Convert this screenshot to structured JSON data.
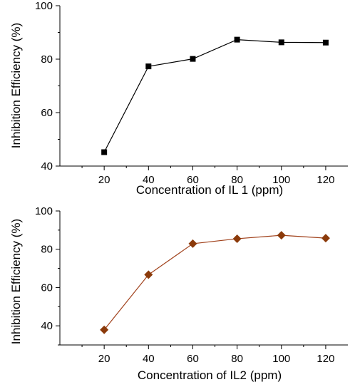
{
  "chart_data": [
    {
      "type": "line",
      "title": "",
      "xlabel": "Concentration of IL 1 (ppm)",
      "ylabel": "Inhibition Efficiency (%)",
      "xlim": [
        0,
        130
      ],
      "ylim": [
        40,
        100
      ],
      "x_ticks": [
        "20",
        "40",
        "60",
        "80",
        "100",
        "120"
      ],
      "y_ticks": [
        "40",
        "60",
        "80",
        "100"
      ],
      "marker": "square",
      "series": [
        {
          "x": [
            20,
            40,
            60,
            80,
            100,
            120
          ],
          "y": [
            45.2,
            77.3,
            80.1,
            87.3,
            86.3,
            86.2
          ],
          "color": "#000000",
          "line_color": "#000000"
        }
      ]
    },
    {
      "type": "line",
      "title": "",
      "xlabel": "Concentration of IL2 (ppm)",
      "ylabel": "Inhibition Efficiency (%)",
      "xlim": [
        0,
        130
      ],
      "ylim": [
        30,
        100
      ],
      "x_ticks": [
        "20",
        "40",
        "60",
        "80",
        "100",
        "120"
      ],
      "y_ticks": [
        "40",
        "60",
        "80",
        "100"
      ],
      "marker": "diamond",
      "series": [
        {
          "x": [
            20,
            40,
            60,
            80,
            100,
            120
          ],
          "y": [
            37.9,
            66.7,
            82.9,
            85.5,
            87.3,
            85.8
          ],
          "color": "#8b3a0a",
          "line_color": "#a0401a"
        }
      ]
    }
  ]
}
